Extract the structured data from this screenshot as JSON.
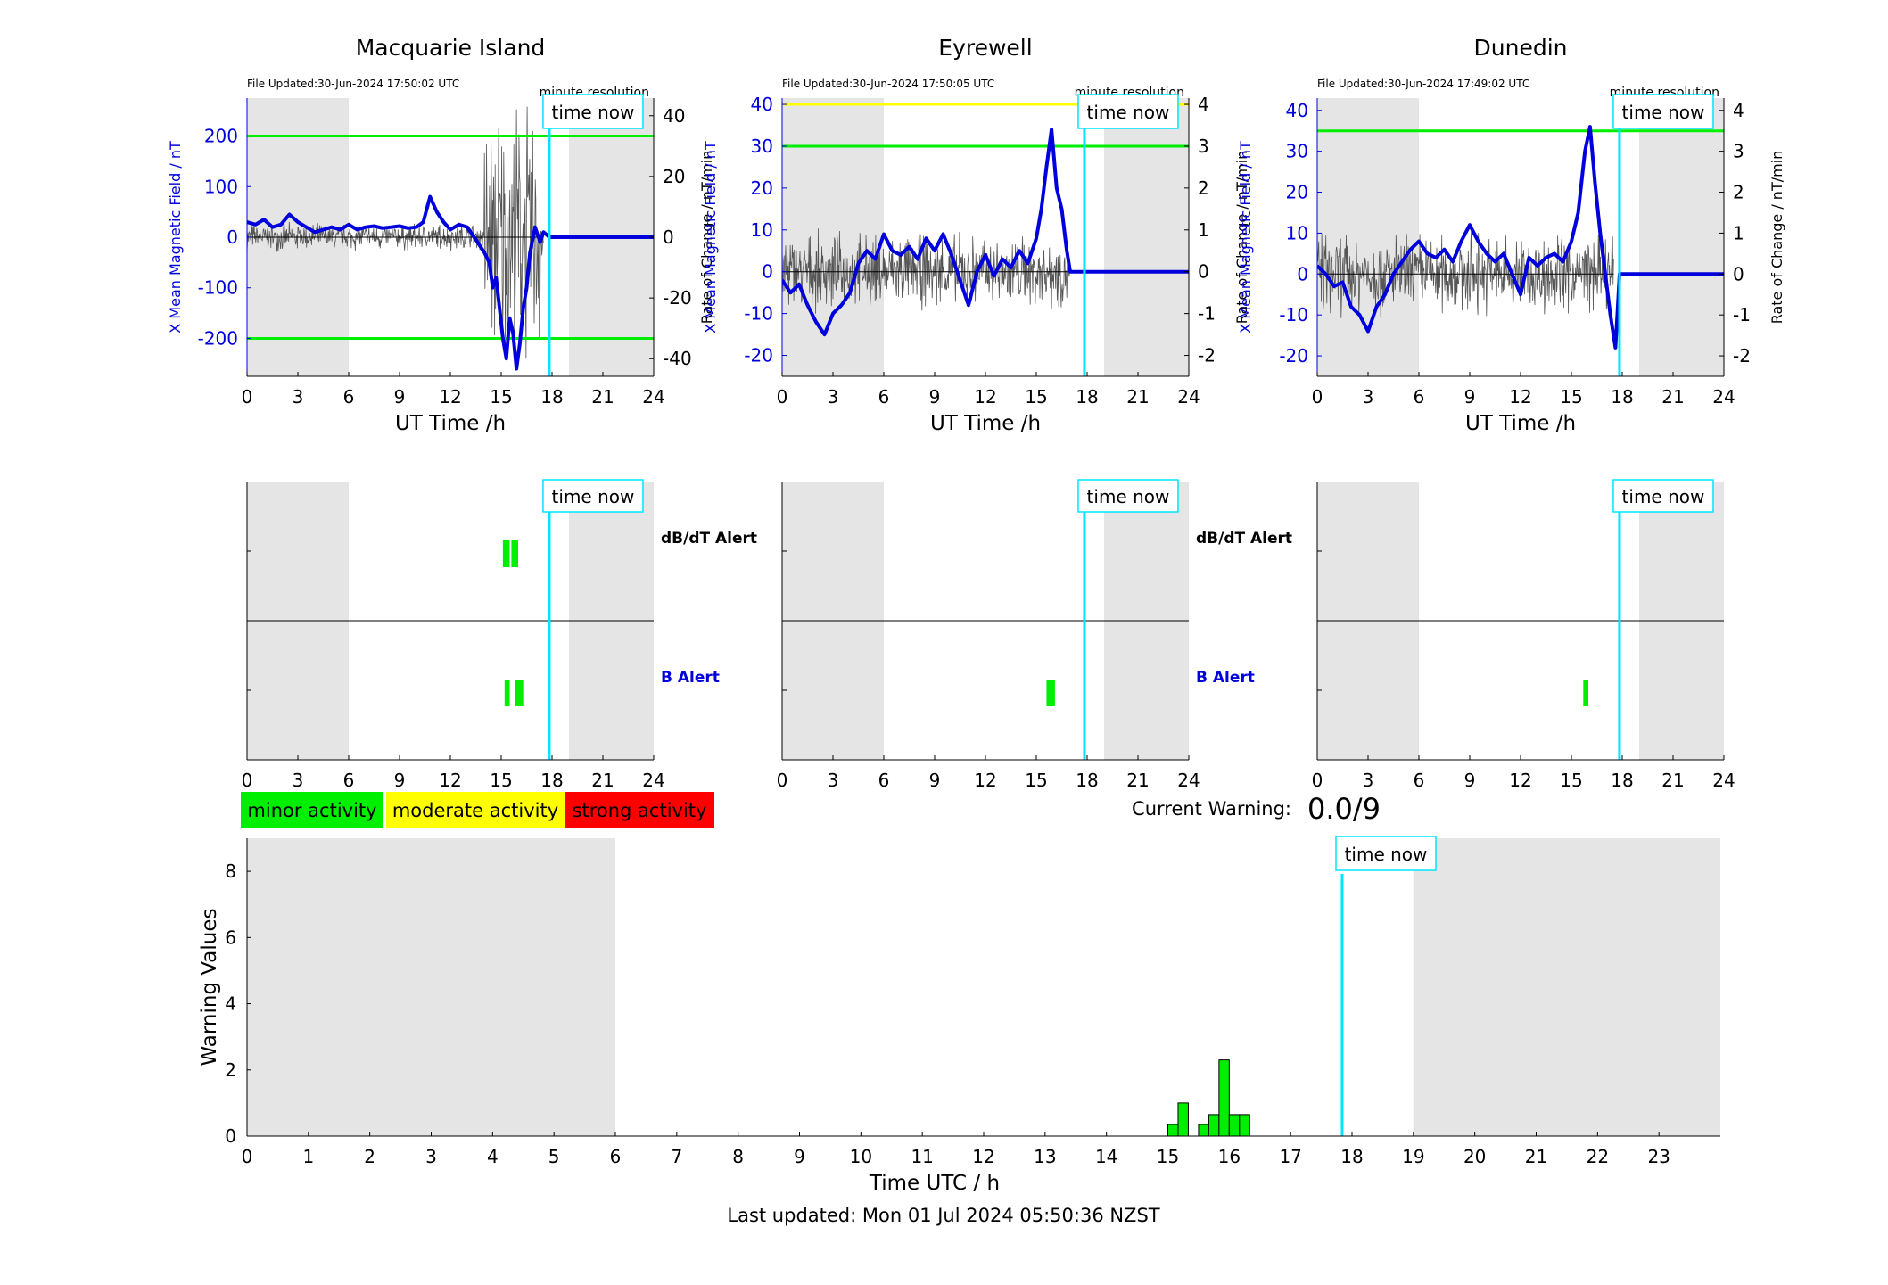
{
  "chart_data": [
    {
      "type": "line",
      "station": "Macquarie Island",
      "file_updated": "File Updated:30-Jun-2024 17:50:02 UTC",
      "resolution_label": "minute resolution",
      "time_now_label": "time now",
      "time_now_h": 17.84,
      "xlabel": "UT Time /h",
      "ylabel_left": "X Mean Magnetic Field / nT",
      "ylabel_right": "Rate of Change / nT/min",
      "xlim": [
        0,
        24
      ],
      "xticks": [
        0,
        3,
        6,
        9,
        12,
        15,
        18,
        21,
        24
      ],
      "ylim_left": [
        -275,
        275
      ],
      "yticks_left": [
        -200,
        -100,
        0,
        100,
        200
      ],
      "ylim_right": [
        -45.8,
        45.8
      ],
      "yticks_right": [
        -40,
        -20,
        0,
        20,
        40
      ],
      "thresholds": [
        {
          "value": 200,
          "color": "#00ee00"
        },
        {
          "value": -200,
          "color": "#00ee00"
        }
      ],
      "night_shading": [
        [
          0,
          6
        ],
        [
          19,
          24
        ]
      ],
      "x_field": [
        0,
        0.5,
        1,
        1.5,
        2,
        2.5,
        3,
        3.5,
        4,
        4.5,
        5,
        5.5,
        6,
        6.5,
        7,
        7.5,
        8,
        8.5,
        9,
        9.5,
        10,
        10.4,
        10.8,
        11.2,
        11.6,
        12,
        12.5,
        13,
        13.5,
        14,
        14.3,
        14.5,
        14.7,
        14.9,
        15.1,
        15.3,
        15.5,
        15.7,
        15.9,
        16.1,
        16.3,
        16.5,
        16.7,
        17,
        17.3,
        17.5,
        17.84,
        18,
        24
      ],
      "x_field_values": [
        30,
        25,
        35,
        20,
        25,
        45,
        30,
        20,
        10,
        15,
        20,
        15,
        25,
        15,
        20,
        22,
        18,
        20,
        22,
        18,
        20,
        30,
        80,
        50,
        30,
        15,
        25,
        20,
        -5,
        -30,
        -50,
        -100,
        -80,
        -140,
        -200,
        -240,
        -160,
        -190,
        -260,
        -210,
        -140,
        -100,
        -30,
        20,
        -10,
        10,
        0,
        0,
        0
      ],
      "rate_of_change_band": [
        {
          "from": 0,
          "to": 14,
          "amplitude": 4
        },
        {
          "from": 14,
          "to": 17.5,
          "amplitude": 38
        }
      ]
    },
    {
      "type": "line",
      "station": "Eyrewell",
      "file_updated": "File Updated:30-Jun-2024 17:50:05 UTC",
      "resolution_label": "minute resolution",
      "time_now_label": "time now",
      "time_now_h": 17.84,
      "xlabel": "UT Time /h",
      "ylabel_left": "X Mean Magnetic Field / nT",
      "ylabel_right": "Rate of Change / nT/min",
      "xlim": [
        0,
        24
      ],
      "xticks": [
        0,
        3,
        6,
        9,
        12,
        15,
        18,
        21,
        24
      ],
      "ylim_left": [
        -25,
        41.5
      ],
      "yticks_left": [
        -20,
        -10,
        0,
        10,
        20,
        30,
        40
      ],
      "ylim_right": [
        -2.5,
        4.15
      ],
      "yticks_right": [
        -2,
        -1,
        0,
        1,
        2,
        3,
        4
      ],
      "thresholds": [
        {
          "value": 40,
          "color": "#ffff00"
        },
        {
          "value": 30,
          "color": "#00ee00"
        }
      ],
      "night_shading": [
        [
          0,
          6
        ],
        [
          19,
          24
        ]
      ],
      "x_field": [
        0,
        0.5,
        1,
        1.5,
        2,
        2.5,
        3,
        3.5,
        4,
        4.5,
        5,
        5.5,
        6,
        6.5,
        7,
        7.5,
        8,
        8.5,
        9,
        9.5,
        10,
        10.5,
        11,
        11.5,
        12,
        12.5,
        13,
        13.5,
        14,
        14.5,
        15,
        15.3,
        15.6,
        15.9,
        16.2,
        16.5,
        16.8,
        17,
        17.84,
        24
      ],
      "x_field_values": [
        -2,
        -5,
        -3,
        -8,
        -12,
        -15,
        -10,
        -8,
        -5,
        2,
        5,
        3,
        9,
        5,
        4,
        6,
        3,
        8,
        5,
        9,
        4,
        -2,
        -8,
        0,
        4,
        -1,
        3,
        1,
        5,
        2,
        8,
        15,
        25,
        34,
        20,
        15,
        5,
        0,
        0,
        0
      ],
      "rate_of_change_band": [
        {
          "from": 0,
          "to": 17,
          "amplitude": 0.8
        }
      ]
    },
    {
      "type": "line",
      "station": "Dunedin",
      "file_updated": "File Updated:30-Jun-2024 17:49:02 UTC",
      "resolution_label": "minute resolution",
      "time_now_label": "time now",
      "time_now_h": 17.84,
      "xlabel": "UT Time /h",
      "ylabel_left": "X Mean Magnetic Field / nT",
      "ylabel_right": "Rate of Change / nT/min",
      "xlim": [
        0,
        24
      ],
      "xticks": [
        0,
        3,
        6,
        9,
        12,
        15,
        18,
        21,
        24
      ],
      "ylim_left": [
        -25,
        43
      ],
      "yticks_left": [
        -20,
        -10,
        0,
        10,
        20,
        30,
        40
      ],
      "ylim_right": [
        -2.5,
        4.3
      ],
      "yticks_right": [
        -2,
        -1,
        0,
        1,
        2,
        3,
        4
      ],
      "thresholds": [
        {
          "value": 35,
          "color": "#00ee00"
        }
      ],
      "night_shading": [
        [
          0,
          6
        ],
        [
          19,
          24
        ]
      ],
      "x_field": [
        0,
        0.5,
        1,
        1.5,
        2,
        2.5,
        3,
        3.5,
        4,
        4.5,
        5,
        5.5,
        6,
        6.5,
        7,
        7.5,
        8,
        8.5,
        9,
        9.5,
        10,
        10.5,
        11,
        11.5,
        12,
        12.5,
        13,
        13.5,
        14,
        14.5,
        15,
        15.4,
        15.8,
        16.1,
        16.4,
        16.7,
        17,
        17.3,
        17.6,
        17.84,
        24
      ],
      "x_field_values": [
        2,
        0,
        -3,
        -2,
        -8,
        -10,
        -14,
        -8,
        -5,
        0,
        3,
        6,
        8,
        5,
        4,
        6,
        3,
        8,
        12,
        8,
        5,
        3,
        5,
        0,
        -5,
        4,
        2,
        4,
        5,
        3,
        8,
        15,
        30,
        36,
        22,
        10,
        0,
        -10,
        -18,
        0,
        0
      ],
      "rate_of_change_band": [
        {
          "from": 0,
          "to": 17.5,
          "amplitude": 0.9
        }
      ]
    },
    {
      "type": "bar",
      "panel": "alerts",
      "station": "Macquarie Island",
      "time_now_label": "time now",
      "time_now_h": 17.84,
      "xlim": [
        0,
        24
      ],
      "xticks": [
        0,
        3,
        6,
        9,
        12,
        15,
        18,
        21,
        24
      ],
      "row_labels": {
        "dbdt": "dB/dT Alert",
        "b": "B Alert"
      },
      "dbdt_alerts": [
        [
          15.1,
          15.5
        ],
        [
          15.6,
          16.0
        ]
      ],
      "b_alerts": [
        [
          15.2,
          15.5
        ],
        [
          15.8,
          16.3
        ]
      ]
    },
    {
      "type": "bar",
      "panel": "alerts",
      "station": "Eyrewell",
      "time_now_label": "time now",
      "time_now_h": 17.84,
      "xlim": [
        0,
        24
      ],
      "xticks": [
        0,
        3,
        6,
        9,
        12,
        15,
        18,
        21,
        24
      ],
      "row_labels": {
        "dbdt": "dB/dT Alert",
        "b": "B Alert"
      },
      "dbdt_alerts": [],
      "b_alerts": [
        [
          15.6,
          16.1
        ]
      ]
    },
    {
      "type": "bar",
      "panel": "alerts",
      "station": "Dunedin",
      "time_now_label": "time now",
      "time_now_h": 17.84,
      "xlim": [
        0,
        24
      ],
      "xticks": [
        0,
        3,
        6,
        9,
        12,
        15,
        18,
        21,
        24
      ],
      "row_labels": {
        "dbdt": "dB/dT Alert",
        "b": "B Alert"
      },
      "dbdt_alerts": [],
      "b_alerts": [
        [
          15.7,
          16.0
        ]
      ]
    },
    {
      "type": "bar",
      "panel": "warning",
      "xlabel": "Time UTC / h",
      "ylabel": "Warning Values",
      "xlim": [
        0,
        24
      ],
      "xticks": [
        0,
        1,
        2,
        3,
        4,
        5,
        6,
        7,
        8,
        9,
        10,
        11,
        12,
        13,
        14,
        15,
        16,
        17,
        18,
        19,
        20,
        21,
        22,
        23
      ],
      "ylim": [
        0,
        9
      ],
      "yticks": [
        0,
        2,
        4,
        6,
        8
      ],
      "time_now_label": "time now",
      "time_now_h": 17.84,
      "night_shading": [
        [
          0,
          6
        ],
        [
          19,
          24
        ]
      ],
      "bar_width_h": 0.1667,
      "bars": [
        {
          "start_h": 15.0,
          "value": 0.35
        },
        {
          "start_h": 15.1667,
          "value": 1.0
        },
        {
          "start_h": 15.5,
          "value": 0.35
        },
        {
          "start_h": 15.6667,
          "value": 0.65
        },
        {
          "start_h": 15.8333,
          "value": 2.3
        },
        {
          "start_h": 16.0,
          "value": 0.65
        },
        {
          "start_h": 16.1667,
          "value": 0.65
        }
      ]
    }
  ],
  "legend": {
    "minor": {
      "label": "minor activity",
      "color": "#00ee00"
    },
    "moderate": {
      "label": "moderate activity",
      "color": "#ffff00"
    },
    "strong": {
      "label": "strong activity",
      "color": "#ff0000"
    }
  },
  "current_warning": {
    "label": "Current Warning:",
    "value": "0.0/9"
  },
  "last_updated": "Last updated: Mon 01 Jul 2024 05:50:36 NZST",
  "colors": {
    "field_line": "#0000dd",
    "time_now": "#00e5ff",
    "night": "#e5e5e5",
    "rate_line": "#555555"
  }
}
